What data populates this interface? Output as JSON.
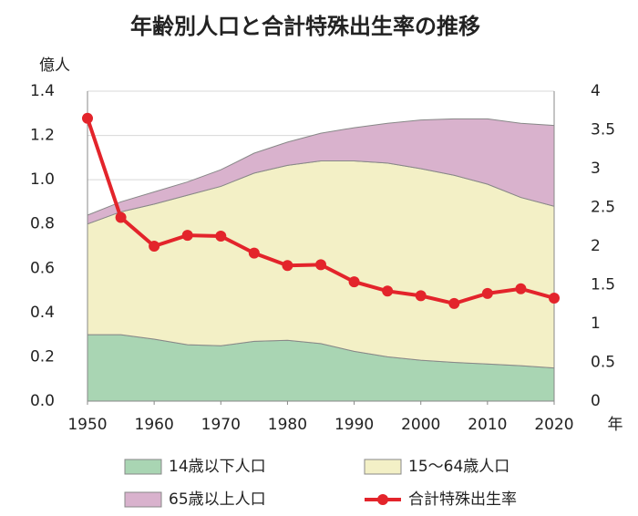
{
  "chart_data": {
    "type": "area",
    "title": "年齢別人口と合計特殊出生率の推移",
    "y_unit": "億人",
    "x_unit": "年",
    "x": [
      1950,
      1955,
      1960,
      1965,
      1970,
      1975,
      1980,
      1985,
      1990,
      1995,
      2000,
      2005,
      2010,
      2015,
      2020
    ],
    "xlim": [
      1950,
      2020
    ],
    "xticks": [
      1950,
      1960,
      1970,
      1980,
      1990,
      2000,
      2010,
      2020
    ],
    "ylim": [
      0,
      1.4
    ],
    "yticks": [
      {
        "value": 0,
        "label": "0.0"
      },
      0.2,
      0.4,
      0.6,
      0.8,
      {
        "value": 1,
        "label": "1.0"
      },
      1.2,
      1.4
    ],
    "y2lim": [
      0,
      4
    ],
    "y2ticks": [
      0,
      0.5,
      1,
      1.5,
      2,
      2.5,
      3,
      3.5,
      4
    ],
    "grid": true,
    "stacked": true,
    "series": [
      {
        "name": "14歳以下人口",
        "color": "#a9d5b3",
        "values": [
          0.3,
          0.3,
          0.28,
          0.255,
          0.25,
          0.27,
          0.275,
          0.26,
          0.225,
          0.2,
          0.185,
          0.175,
          0.168,
          0.16,
          0.15
        ]
      },
      {
        "name": "15〜64歳人口",
        "color": "#f3f0c6",
        "values": [
          0.5,
          0.555,
          0.61,
          0.675,
          0.72,
          0.76,
          0.79,
          0.825,
          0.86,
          0.875,
          0.865,
          0.845,
          0.812,
          0.76,
          0.73
        ]
      },
      {
        "name": "65歳以上人口",
        "color": "#d9b2cd",
        "values": [
          0.04,
          0.045,
          0.055,
          0.06,
          0.075,
          0.09,
          0.105,
          0.125,
          0.15,
          0.18,
          0.22,
          0.255,
          0.295,
          0.335,
          0.365
        ]
      },
      {
        "name": "合計特殊出生率",
        "color": "#e3242b",
        "type": "line",
        "axis": "y2",
        "values": [
          3.65,
          2.37,
          2.0,
          2.14,
          2.13,
          1.91,
          1.75,
          1.76,
          1.54,
          1.42,
          1.36,
          1.26,
          1.39,
          1.45,
          1.33
        ]
      }
    ]
  }
}
